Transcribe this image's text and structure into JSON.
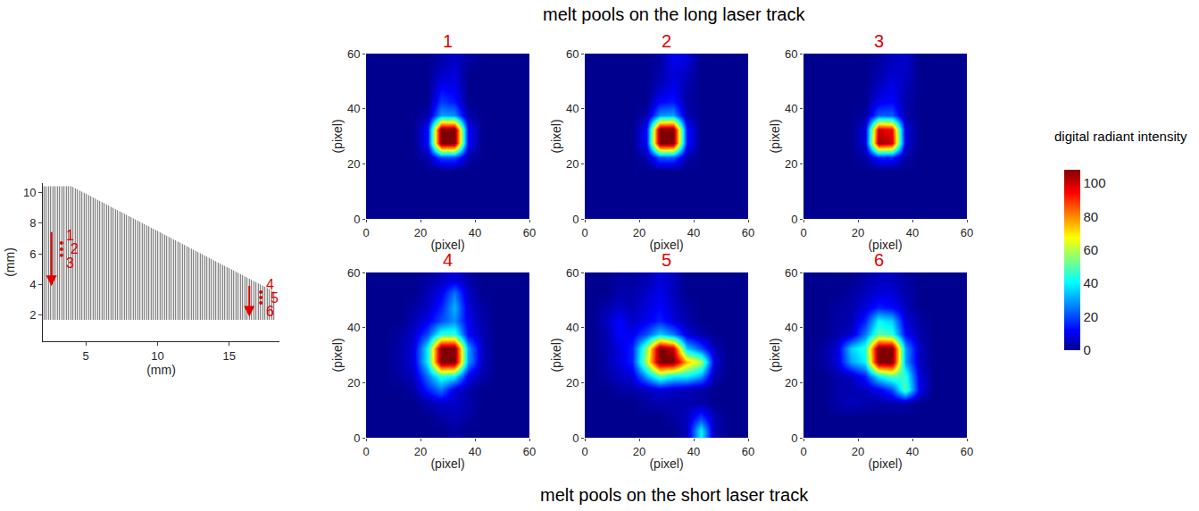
{
  "caption_top": "melt pools on the long laser track",
  "caption_bottom": "melt pools on the short laser track",
  "colorbar": {
    "title": "digital radiant intensity",
    "zlim": [
      0,
      108
    ],
    "ticks": [
      0,
      20,
      40,
      60,
      80,
      100
    ]
  },
  "track_diagram": {
    "type": "diagram",
    "x_label": "(mm)",
    "y_label": "(mm)",
    "xlim": [
      2,
      18.5
    ],
    "ylim": [
      0.3,
      10.6
    ],
    "xticks": [
      5,
      10,
      15
    ],
    "yticks": [
      2,
      4,
      6,
      8,
      10
    ],
    "outline": {
      "x": [
        2,
        2,
        4,
        18.2,
        18.2,
        2
      ],
      "y": [
        1.7,
        10.4,
        10.4,
        3.5,
        1.7,
        1.7
      ]
    },
    "arrows": [
      {
        "from": [
          2.6,
          7.5
        ],
        "to": [
          2.6,
          3.9
        ]
      },
      {
        "from": [
          16.4,
          4.0
        ],
        "to": [
          16.4,
          1.9
        ]
      }
    ],
    "points": [
      {
        "label": "1",
        "x": 3.3,
        "y": 6.7
      },
      {
        "label": "2",
        "x": 3.3,
        "y": 6.3
      },
      {
        "label": "3",
        "x": 3.3,
        "y": 5.9
      },
      {
        "label": "4",
        "x": 17.2,
        "y": 3.5
      },
      {
        "label": "5",
        "x": 17.2,
        "y": 3.15
      },
      {
        "label": "6",
        "x": 17.2,
        "y": 2.8
      }
    ]
  },
  "chart_data": [
    {
      "type": "heatmap",
      "title": "1",
      "x_label": "(pixel)",
      "y_label": "(pixel)",
      "xlim": [
        0,
        60
      ],
      "ylim": [
        0,
        60
      ],
      "xticks": [
        0,
        20,
        40,
        60
      ],
      "yticks": [
        0,
        20,
        40,
        60
      ],
      "x": [
        2.5,
        7.5,
        12.5,
        17.5,
        22.5,
        27.5,
        32.5,
        37.5,
        42.5,
        47.5,
        52.5,
        57.5
      ],
      "y": [
        2.5,
        7.5,
        12.5,
        17.5,
        22.5,
        27.5,
        32.5,
        37.5,
        42.5,
        47.5,
        52.5,
        57.5
      ],
      "z": [
        [
          0,
          0,
          0,
          0,
          0,
          0,
          0,
          0,
          0,
          0,
          0,
          0
        ],
        [
          0,
          0,
          0,
          0,
          0,
          0,
          0,
          0,
          0,
          0,
          0,
          0
        ],
        [
          0,
          0,
          0,
          0,
          0,
          0,
          0,
          0,
          0,
          0,
          0,
          0
        ],
        [
          0,
          0,
          0,
          0,
          0,
          0,
          0,
          0,
          0,
          0,
          0,
          0
        ],
        [
          0,
          0,
          0,
          0,
          3,
          20,
          20,
          3,
          0,
          0,
          0,
          0
        ],
        [
          0,
          0,
          0,
          0,
          12,
          110,
          110,
          12,
          0,
          0,
          0,
          0
        ],
        [
          0,
          0,
          0,
          0,
          12,
          110,
          110,
          12,
          0,
          0,
          0,
          0
        ],
        [
          0,
          0,
          0,
          0,
          3,
          30,
          28,
          3,
          0,
          0,
          0,
          0
        ],
        [
          0,
          0,
          0,
          0,
          0,
          18,
          14,
          0,
          0,
          0,
          0,
          0
        ],
        [
          0,
          0,
          0,
          0,
          0,
          12,
          10,
          0,
          0,
          0,
          0,
          0
        ],
        [
          0,
          0,
          0,
          0,
          0,
          6,
          8,
          0,
          0,
          0,
          0,
          0
        ],
        [
          0,
          0,
          0,
          0,
          0,
          3,
          6,
          2,
          0,
          0,
          0,
          0
        ]
      ]
    },
    {
      "type": "heatmap",
      "title": "2",
      "x_label": "(pixel)",
      "y_label": "(pixel)",
      "xlim": [
        0,
        60
      ],
      "ylim": [
        0,
        60
      ],
      "xticks": [
        0,
        20,
        40,
        60
      ],
      "yticks": [
        0,
        20,
        40,
        60
      ],
      "x": [
        2.5,
        7.5,
        12.5,
        17.5,
        22.5,
        27.5,
        32.5,
        37.5,
        42.5,
        47.5,
        52.5,
        57.5
      ],
      "y": [
        2.5,
        7.5,
        12.5,
        17.5,
        22.5,
        27.5,
        32.5,
        37.5,
        42.5,
        47.5,
        52.5,
        57.5
      ],
      "z": [
        [
          0,
          0,
          0,
          0,
          0,
          0,
          0,
          0,
          0,
          0,
          0,
          0
        ],
        [
          0,
          0,
          0,
          0,
          0,
          0,
          0,
          0,
          0,
          0,
          0,
          0
        ],
        [
          0,
          0,
          0,
          0,
          0,
          0,
          0,
          0,
          0,
          0,
          0,
          0
        ],
        [
          0,
          0,
          0,
          0,
          0,
          0,
          0,
          0,
          0,
          0,
          0,
          0
        ],
        [
          0,
          0,
          0,
          0,
          3,
          22,
          22,
          3,
          0,
          0,
          0,
          0
        ],
        [
          0,
          0,
          0,
          0,
          12,
          110,
          110,
          14,
          0,
          0,
          0,
          0
        ],
        [
          0,
          0,
          0,
          0,
          12,
          110,
          110,
          14,
          0,
          0,
          0,
          0
        ],
        [
          0,
          0,
          0,
          0,
          3,
          28,
          30,
          4,
          0,
          0,
          0,
          0
        ],
        [
          0,
          0,
          0,
          0,
          0,
          12,
          14,
          2,
          0,
          0,
          0,
          0
        ],
        [
          0,
          0,
          0,
          0,
          0,
          6,
          10,
          3,
          0,
          0,
          0,
          0
        ],
        [
          0,
          0,
          0,
          0,
          0,
          3,
          8,
          5,
          0,
          0,
          0,
          0
        ],
        [
          0,
          0,
          0,
          0,
          0,
          2,
          10,
          8,
          0,
          0,
          0,
          0
        ]
      ]
    },
    {
      "type": "heatmap",
      "title": "3",
      "x_label": "(pixel)",
      "y_label": "(pixel)",
      "xlim": [
        0,
        60
      ],
      "ylim": [
        0,
        60
      ],
      "xticks": [
        0,
        20,
        40,
        60
      ],
      "yticks": [
        0,
        20,
        40,
        60
      ],
      "x": [
        2.5,
        7.5,
        12.5,
        17.5,
        22.5,
        27.5,
        32.5,
        37.5,
        42.5,
        47.5,
        52.5,
        57.5
      ],
      "y": [
        2.5,
        7.5,
        12.5,
        17.5,
        22.5,
        27.5,
        32.5,
        37.5,
        42.5,
        47.5,
        52.5,
        57.5
      ],
      "z": [
        [
          0,
          0,
          0,
          0,
          0,
          0,
          0,
          0,
          0,
          0,
          0,
          0
        ],
        [
          0,
          0,
          0,
          0,
          0,
          0,
          0,
          0,
          0,
          0,
          0,
          0
        ],
        [
          0,
          0,
          0,
          0,
          0,
          0,
          0,
          0,
          0,
          0,
          0,
          0
        ],
        [
          0,
          0,
          0,
          0,
          0,
          0,
          0,
          0,
          0,
          0,
          0,
          0
        ],
        [
          0,
          0,
          0,
          0,
          2,
          15,
          15,
          2,
          0,
          0,
          0,
          0
        ],
        [
          0,
          0,
          0,
          0,
          8,
          105,
          100,
          8,
          0,
          0,
          0,
          0
        ],
        [
          0,
          0,
          0,
          0,
          8,
          100,
          95,
          8,
          0,
          0,
          0,
          0
        ],
        [
          0,
          0,
          0,
          0,
          2,
          22,
          22,
          3,
          0,
          0,
          0,
          0
        ],
        [
          0,
          0,
          0,
          0,
          0,
          10,
          12,
          3,
          0,
          0,
          0,
          0
        ],
        [
          0,
          0,
          0,
          0,
          0,
          6,
          10,
          4,
          0,
          0,
          0,
          0
        ],
        [
          0,
          0,
          0,
          0,
          0,
          3,
          7,
          6,
          0,
          0,
          0,
          0
        ],
        [
          0,
          0,
          0,
          0,
          0,
          2,
          5,
          6,
          0,
          0,
          0,
          0
        ]
      ]
    },
    {
      "type": "heatmap",
      "title": "4",
      "x_label": "(pixel)",
      "y_label": "(pixel)",
      "xlim": [
        0,
        60
      ],
      "ylim": [
        0,
        60
      ],
      "xticks": [
        0,
        20,
        40,
        60
      ],
      "yticks": [
        0,
        20,
        40,
        60
      ],
      "x": [
        2.5,
        7.5,
        12.5,
        17.5,
        22.5,
        27.5,
        32.5,
        37.5,
        42.5,
        47.5,
        52.5,
        57.5
      ],
      "y": [
        2.5,
        7.5,
        12.5,
        17.5,
        22.5,
        27.5,
        32.5,
        37.5,
        42.5,
        47.5,
        52.5,
        57.5
      ],
      "z": [
        [
          0,
          0,
          0,
          0,
          0,
          0,
          2,
          0,
          0,
          0,
          0,
          0
        ],
        [
          0,
          0,
          0,
          0,
          0,
          2,
          4,
          2,
          0,
          0,
          0,
          0
        ],
        [
          0,
          0,
          0,
          0,
          3,
          6,
          6,
          3,
          0,
          0,
          0,
          0
        ],
        [
          0,
          0,
          0,
          2,
          15,
          25,
          8,
          3,
          0,
          0,
          0,
          0
        ],
        [
          0,
          0,
          2,
          5,
          25,
          45,
          40,
          10,
          3,
          0,
          0,
          0
        ],
        [
          0,
          0,
          3,
          8,
          40,
          110,
          110,
          30,
          5,
          0,
          0,
          0
        ],
        [
          0,
          0,
          3,
          8,
          40,
          110,
          110,
          30,
          5,
          0,
          0,
          0
        ],
        [
          0,
          0,
          2,
          6,
          20,
          45,
          45,
          12,
          4,
          0,
          0,
          0
        ],
        [
          0,
          0,
          0,
          4,
          10,
          20,
          28,
          10,
          3,
          0,
          0,
          0
        ],
        [
          0,
          0,
          0,
          2,
          6,
          15,
          32,
          8,
          2,
          0,
          0,
          0
        ],
        [
          0,
          0,
          0,
          0,
          4,
          10,
          25,
          6,
          0,
          0,
          0,
          0
        ],
        [
          0,
          0,
          0,
          0,
          2,
          5,
          8,
          3,
          0,
          0,
          0,
          0
        ]
      ]
    },
    {
      "type": "heatmap",
      "title": "5",
      "x_label": "(pixel)",
      "y_label": "(pixel)",
      "xlim": [
        0,
        60
      ],
      "ylim": [
        0,
        60
      ],
      "xticks": [
        0,
        20,
        40,
        60
      ],
      "yticks": [
        0,
        20,
        40,
        60
      ],
      "x": [
        2.5,
        7.5,
        12.5,
        17.5,
        22.5,
        27.5,
        32.5,
        37.5,
        42.5,
        47.5,
        52.5,
        57.5
      ],
      "y": [
        2.5,
        7.5,
        12.5,
        17.5,
        22.5,
        27.5,
        32.5,
        37.5,
        42.5,
        47.5,
        52.5,
        57.5
      ],
      "z": [
        [
          0,
          0,
          0,
          0,
          0,
          0,
          0,
          4,
          40,
          4,
          0,
          0
        ],
        [
          0,
          0,
          0,
          0,
          0,
          0,
          2,
          5,
          18,
          4,
          0,
          0
        ],
        [
          0,
          0,
          0,
          0,
          2,
          3,
          3,
          3,
          3,
          0,
          0,
          0
        ],
        [
          0,
          0,
          2,
          3,
          5,
          8,
          6,
          4,
          2,
          0,
          0,
          0
        ],
        [
          0,
          2,
          5,
          8,
          30,
          50,
          40,
          40,
          30,
          3,
          0,
          0
        ],
        [
          0,
          3,
          8,
          15,
          60,
          110,
          110,
          75,
          60,
          8,
          0,
          0
        ],
        [
          0,
          3,
          8,
          15,
          55,
          110,
          100,
          35,
          20,
          4,
          0,
          0
        ],
        [
          0,
          3,
          12,
          10,
          20,
          35,
          25,
          8,
          3,
          0,
          0,
          0
        ],
        [
          0,
          5,
          12,
          6,
          10,
          15,
          8,
          3,
          0,
          0,
          0,
          0
        ],
        [
          0,
          3,
          6,
          4,
          8,
          12,
          6,
          2,
          0,
          0,
          0,
          0
        ],
        [
          0,
          0,
          3,
          3,
          6,
          10,
          5,
          0,
          0,
          0,
          0,
          0
        ],
        [
          0,
          0,
          2,
          2,
          4,
          8,
          5,
          0,
          0,
          0,
          0,
          0
        ]
      ]
    },
    {
      "type": "heatmap",
      "title": "6",
      "x_label": "(pixel)",
      "y_label": "(pixel)",
      "xlim": [
        0,
        60
      ],
      "ylim": [
        0,
        60
      ],
      "xticks": [
        0,
        20,
        40,
        60
      ],
      "yticks": [
        0,
        20,
        40,
        60
      ],
      "x": [
        2.5,
        7.5,
        12.5,
        17.5,
        22.5,
        27.5,
        32.5,
        37.5,
        42.5,
        47.5,
        52.5,
        57.5
      ],
      "y": [
        2.5,
        7.5,
        12.5,
        17.5,
        22.5,
        27.5,
        32.5,
        37.5,
        42.5,
        47.5,
        52.5,
        57.5
      ],
      "z": [
        [
          0,
          0,
          0,
          0,
          0,
          0,
          0,
          0,
          0,
          0,
          0,
          0
        ],
        [
          0,
          0,
          0,
          0,
          0,
          0,
          0,
          0,
          0,
          0,
          0,
          0
        ],
        [
          0,
          0,
          3,
          5,
          3,
          2,
          3,
          3,
          0,
          0,
          0,
          0
        ],
        [
          0,
          0,
          3,
          3,
          5,
          10,
          20,
          50,
          10,
          0,
          0,
          0
        ],
        [
          0,
          0,
          3,
          5,
          15,
          40,
          50,
          45,
          8,
          0,
          0,
          0
        ],
        [
          0,
          2,
          8,
          30,
          40,
          110,
          110,
          30,
          5,
          0,
          0,
          0
        ],
        [
          0,
          2,
          8,
          35,
          45,
          110,
          110,
          30,
          5,
          0,
          0,
          0
        ],
        [
          0,
          0,
          3,
          6,
          25,
          50,
          45,
          12,
          3,
          0,
          0,
          0
        ],
        [
          0,
          0,
          2,
          4,
          15,
          40,
          35,
          8,
          2,
          0,
          0,
          0
        ],
        [
          0,
          0,
          2,
          3,
          8,
          15,
          12,
          5,
          0,
          0,
          0,
          0
        ],
        [
          0,
          0,
          0,
          2,
          5,
          8,
          8,
          3,
          0,
          0,
          0,
          0
        ],
        [
          0,
          0,
          0,
          0,
          3,
          5,
          5,
          2,
          0,
          0,
          0,
          0
        ]
      ]
    }
  ]
}
